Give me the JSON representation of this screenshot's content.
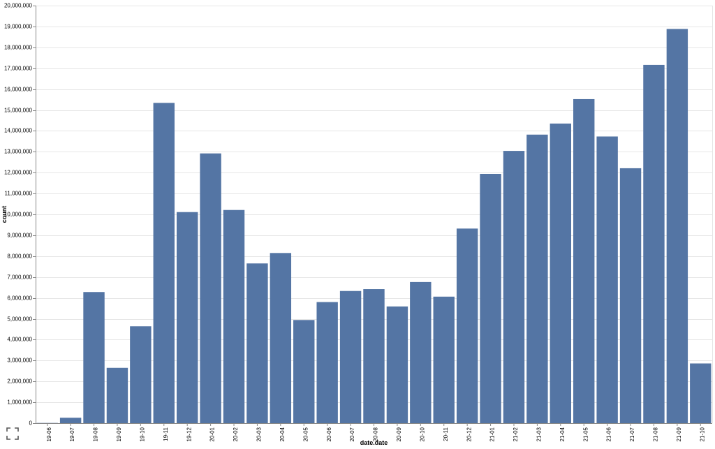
{
  "chart_data": {
    "type": "bar",
    "categories": [
      "19-06",
      "19-07",
      "19-08",
      "19-09",
      "19-10",
      "19-11",
      "19-12",
      "20-01",
      "20-02",
      "20-03",
      "20-04",
      "20-05",
      "20-06",
      "20-07",
      "20-08",
      "20-09",
      "20-10",
      "20-11",
      "20-12",
      "21-01",
      "21-02",
      "21-03",
      "21-04",
      "21-05",
      "21-06",
      "21-07",
      "21-08",
      "21-09",
      "21-10"
    ],
    "values": [
      10000,
      260000,
      6280000,
      2650000,
      4640000,
      15340000,
      10110000,
      12920000,
      10210000,
      7650000,
      8150000,
      4940000,
      5800000,
      6330000,
      6420000,
      5590000,
      6760000,
      6060000,
      9320000,
      11940000,
      13040000,
      13820000,
      14350000,
      15520000,
      13730000,
      12210000,
      17160000,
      18880000,
      2860000
    ],
    "xlabel": "date.date",
    "ylabel": "count",
    "ylim": [
      0,
      20000000
    ],
    "yticks": [
      "0",
      "1,000,000",
      "2,000,000",
      "3,000,000",
      "4,000,000",
      "5,000,000",
      "6,000,000",
      "7,000,000",
      "8,000,000",
      "9,000,000",
      "10,000,000",
      "11,000,000",
      "12,000,000",
      "13,000,000",
      "14,000,000",
      "15,000,000",
      "16,000,000",
      "17,000,000",
      "18,000,000",
      "19,000,000",
      "20,000,000"
    ],
    "bar_color": "#5475a4",
    "grid": true,
    "legend": "none"
  },
  "controls": {
    "expand_icon": "expand-icon"
  }
}
